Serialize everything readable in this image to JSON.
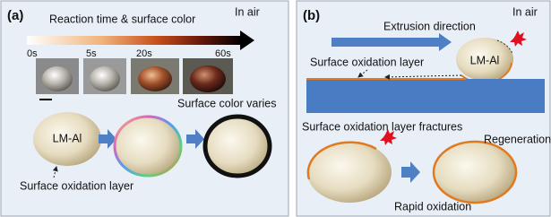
{
  "panel_a": {
    "label": "(a)",
    "title": "Reaction time & surface color",
    "environment": "In air",
    "times": [
      "0s",
      "5s",
      "20s",
      "60s"
    ],
    "caption": "Surface color varies",
    "droplet_label": "LM-Al",
    "layer_label": "Surface oxidation layer"
  },
  "panel_b": {
    "label": "(b)",
    "direction_label": "Extrusion direction",
    "environment": "In air",
    "layer_label": "Surface oxidation layer",
    "droplet_label": "LM-Al",
    "fracture_label": "Surface oxidation layer fractures",
    "regeneration_label": "Regeneration",
    "oxidation_label": "Rapid oxidation"
  }
}
